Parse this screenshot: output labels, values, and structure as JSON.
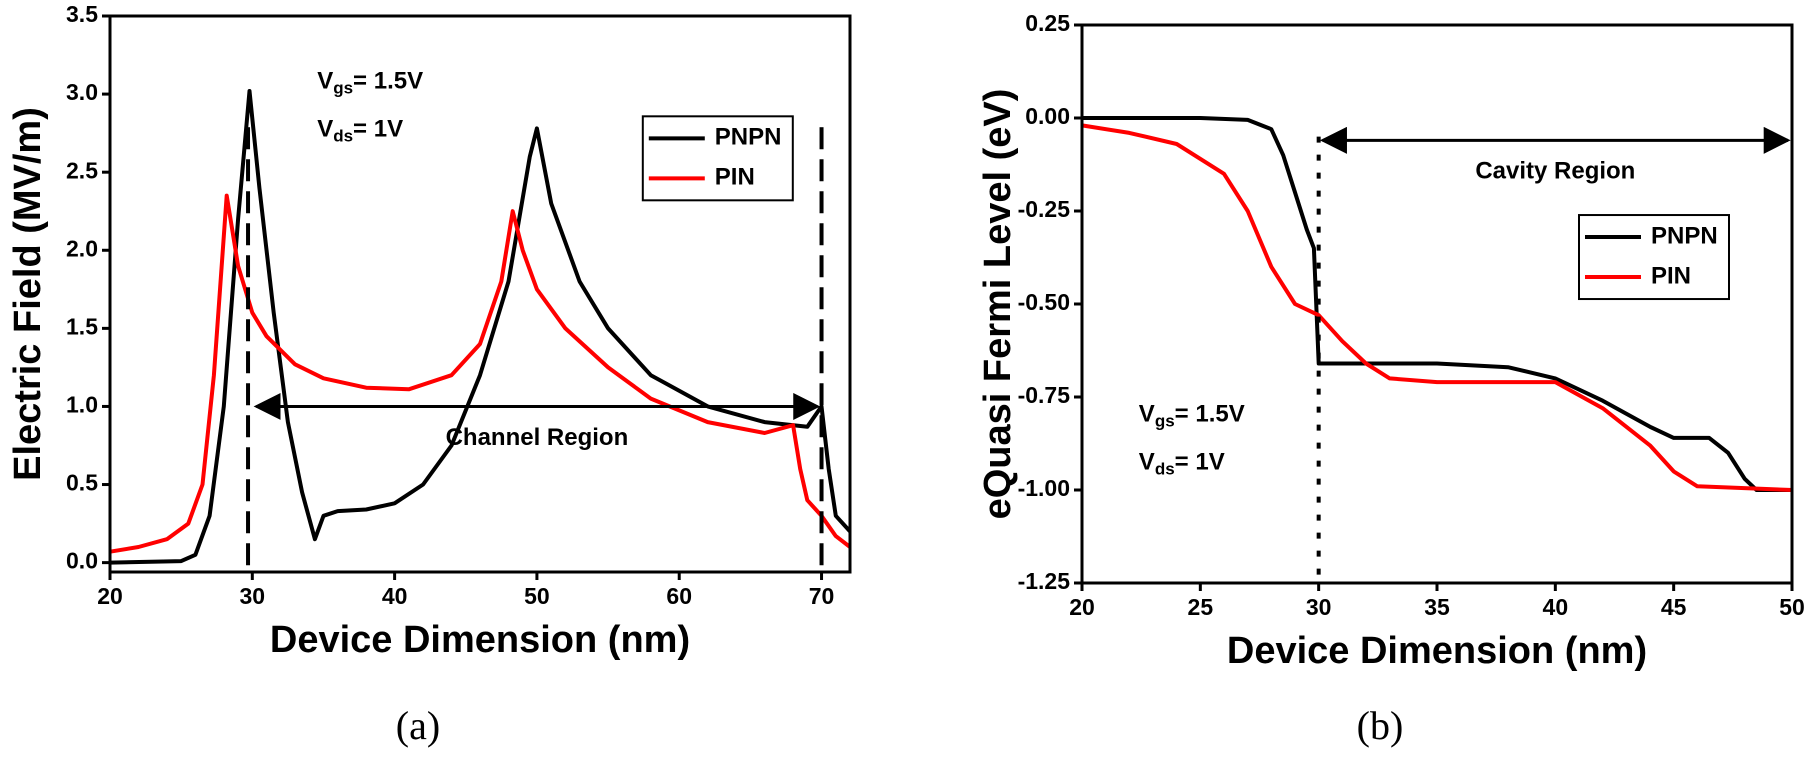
{
  "chart_data": [
    {
      "type": "line",
      "xlabel": "Device Dimension (nm)",
      "ylabel": "Electric Field (MV/m)",
      "caption": "(a)",
      "xlim": [
        20,
        72
      ],
      "xticks": [
        20,
        30,
        40,
        50,
        60,
        70
      ],
      "ylim": [
        -0.06,
        3.5
      ],
      "yticks": [
        {
          "value": 0,
          "label": "0.0"
        },
        0.5,
        {
          "value": 1,
          "label": "1.0"
        },
        1.5,
        {
          "value": 2,
          "label": "2.0"
        },
        2.5,
        {
          "value": 3,
          "label": "3.0"
        },
        3.5
      ],
      "legend": "upper right",
      "annotation": {
        "vgs": [
          "V",
          "gs",
          "= 1.5V"
        ],
        "vds": [
          "V",
          "ds",
          "= 1V"
        ]
      },
      "vlines": [
        29.7,
        70
      ],
      "region": {
        "label": "Channel Region",
        "x": [
          30,
          70
        ],
        "y": 1.0
      },
      "series": [
        {
          "name": "PNPN",
          "color": "#000000",
          "x": [
            20,
            25,
            26,
            27,
            28,
            29,
            29.8,
            30.5,
            31.5,
            32.5,
            33.5,
            34.4,
            35,
            36,
            38,
            40,
            42,
            44,
            46,
            48,
            49.5,
            50,
            51,
            53,
            55,
            58,
            62,
            66,
            69,
            70,
            70.5,
            71,
            72
          ],
          "values": [
            0,
            0.01,
            0.05,
            0.3,
            1.0,
            2.2,
            3.02,
            2.4,
            1.6,
            0.9,
            0.45,
            0.15,
            0.3,
            0.33,
            0.34,
            0.38,
            0.5,
            0.75,
            1.2,
            1.8,
            2.6,
            2.78,
            2.3,
            1.8,
            1.5,
            1.2,
            1.0,
            0.9,
            0.87,
            1.0,
            0.6,
            0.3,
            0.2
          ]
        },
        {
          "name": "PIN",
          "color": "#ff0000",
          "x": [
            20,
            22,
            24,
            25.5,
            26.5,
            27.3,
            28.2,
            29,
            30,
            31,
            33,
            35,
            38,
            41,
            44,
            46,
            47.5,
            48.3,
            49,
            50,
            52,
            55,
            58,
            62,
            66,
            68,
            68.5,
            69,
            70,
            71,
            72
          ],
          "values": [
            0.07,
            0.1,
            0.15,
            0.25,
            0.5,
            1.2,
            2.35,
            1.9,
            1.6,
            1.45,
            1.27,
            1.18,
            1.12,
            1.11,
            1.2,
            1.4,
            1.8,
            2.25,
            2.0,
            1.75,
            1.5,
            1.25,
            1.05,
            0.9,
            0.83,
            0.88,
            0.6,
            0.4,
            0.3,
            0.17,
            0.1
          ]
        }
      ]
    },
    {
      "type": "line",
      "xlabel": "Device Dimension (nm)",
      "ylabel": "eQuasi Fermi Level (eV)",
      "caption": "(b)",
      "xlim": [
        20,
        50
      ],
      "xticks": [
        20,
        25,
        30,
        35,
        40,
        45,
        50
      ],
      "ylim": [
        -1.25,
        0.25
      ],
      "yticks": [
        0.25,
        {
          "value": 0,
          "label": "0.00"
        },
        -0.25,
        {
          "value": -0.5,
          "label": "-0.50"
        },
        -0.75,
        {
          "value": -1,
          "label": "-1.00"
        },
        -1.25
      ],
      "legend": "center right",
      "annotation": {
        "vgs": [
          "V",
          "gs",
          "= 1.5V"
        ],
        "vds": [
          "V",
          "ds",
          "= 1V"
        ]
      },
      "vlines": [
        30
      ],
      "region": {
        "label": "Cavity Region",
        "x": [
          30,
          50
        ],
        "y": -0.06
      },
      "series": [
        {
          "name": "PNPN",
          "color": "#000000",
          "x": [
            20,
            25,
            27,
            28,
            28.5,
            29,
            29.5,
            29.8,
            30,
            35,
            38,
            40,
            42,
            44,
            45,
            46.5,
            47.3,
            48,
            48.5,
            50
          ],
          "values": [
            0,
            0,
            -0.005,
            -0.03,
            -0.1,
            -0.2,
            -0.3,
            -0.35,
            -0.66,
            -0.66,
            -0.67,
            -0.7,
            -0.76,
            -0.83,
            -0.86,
            -0.86,
            -0.9,
            -0.97,
            -1.0,
            -1.0
          ]
        },
        {
          "name": "PIN",
          "color": "#ff0000",
          "x": [
            20,
            22,
            24,
            26,
            27,
            28,
            29,
            30,
            31,
            32,
            33,
            35,
            40,
            42,
            44,
            45,
            46,
            50
          ],
          "values": [
            -0.02,
            -0.04,
            -0.07,
            -0.15,
            -0.25,
            -0.4,
            -0.5,
            -0.53,
            -0.6,
            -0.66,
            -0.7,
            -0.71,
            -0.71,
            -0.78,
            -0.88,
            -0.95,
            -0.99,
            -1.0
          ]
        }
      ]
    }
  ]
}
